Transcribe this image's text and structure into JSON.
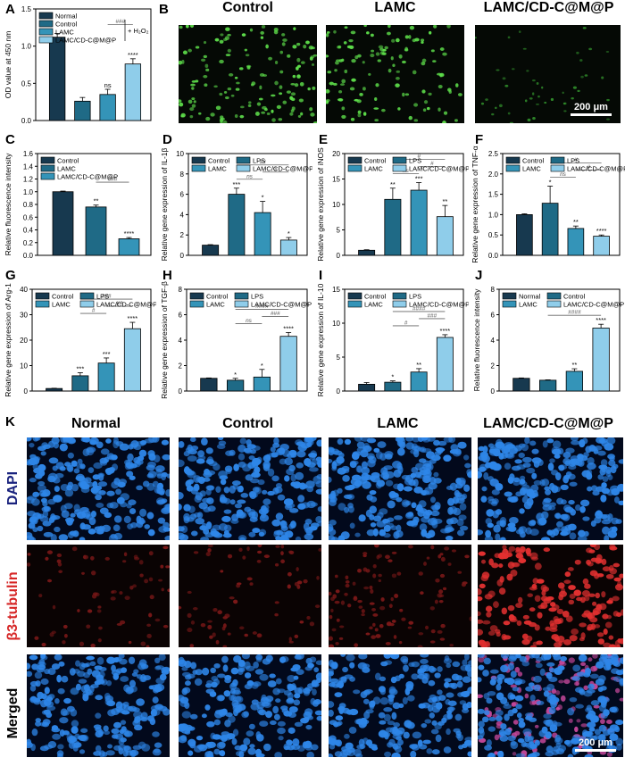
{
  "panel_letters": [
    "A",
    "B",
    "C",
    "D",
    "E",
    "F",
    "G",
    "H",
    "I",
    "J",
    "K"
  ],
  "colors": {
    "normal": "#17394f",
    "control": "#1f6a86",
    "lamc": "#3494b8",
    "combo": "#8fcdea",
    "green": "#5ddd4a",
    "dapi": "#2e86e8",
    "tub": "#d62525"
  },
  "panelB": {
    "titles": [
      "Control",
      "LAMC",
      "LAMC/CD-C@M@P"
    ],
    "scale_label": "200 μm"
  },
  "panelK": {
    "col_titles": [
      "Normal",
      "Control",
      "LAMC",
      "LAMC/CD-C@M@P"
    ],
    "row_labels": [
      "DAPI",
      "β3-tubulin",
      "Merged"
    ],
    "row_label_colors": [
      "#1a237e",
      "#d62525",
      "#000000"
    ],
    "scale_label": "200 μm"
  },
  "chart_data": [
    {
      "id": "A",
      "type": "bar",
      "ylabel": "OD value at 450 nm",
      "ylim": [
        0,
        1.5
      ],
      "yticks": [
        "0.0",
        "0.5",
        "1.0",
        "1.5"
      ],
      "ytick_values": [
        0,
        0.5,
        1.0,
        1.5
      ],
      "categories": [
        "Normal",
        "Control",
        "LAMC",
        "LAMC/CD-C@M@P"
      ],
      "values": [
        1.12,
        0.26,
        0.35,
        0.76
      ],
      "errors": [
        0.05,
        0.05,
        0.07,
        0.07
      ],
      "colors": [
        "#17394f",
        "#1f6a86",
        "#3494b8",
        "#8fcdea"
      ],
      "stars": [
        "",
        "",
        "ns",
        "****"
      ],
      "legend": [
        "Normal",
        "Control",
        "LAMC",
        "LAMC/CD-C@M@P"
      ],
      "legend_note": "+ H₂O₂",
      "brackets": [
        {
          "from": 2,
          "to": 3,
          "label": "###"
        }
      ]
    },
    {
      "id": "C",
      "type": "bar",
      "ylabel": "Relative fluorescence intensity",
      "ylim": [
        0,
        1.6
      ],
      "yticks": [
        "0.0",
        "0.2",
        "0.4",
        "0.6",
        "0.8",
        "1.0",
        "1.2",
        "1.4",
        "1.6"
      ],
      "ytick_values": [
        0,
        0.2,
        0.4,
        0.6,
        0.8,
        1.0,
        1.2,
        1.4,
        1.6
      ],
      "categories": [
        "Control",
        "LAMC",
        "LAMC/CD-C@M@P"
      ],
      "values": [
        1.0,
        0.76,
        0.26
      ],
      "errors": [
        0.01,
        0.03,
        0.02
      ],
      "colors": [
        "#17394f",
        "#1f6a86",
        "#3494b8"
      ],
      "stars": [
        "",
        "**",
        "****"
      ],
      "legend": [
        "Control",
        "LAMC",
        "LAMC/CD-C@M@P"
      ],
      "brackets": [
        {
          "from": 1,
          "to": 2,
          "label": "###"
        }
      ]
    },
    {
      "id": "D",
      "type": "bar",
      "ylabel": "Relative gene expression of IL-1β",
      "ylim": [
        0,
        10
      ],
      "yticks": [
        "0",
        "2",
        "4",
        "6",
        "8",
        "10"
      ],
      "ytick_values": [
        0,
        2,
        4,
        6,
        8,
        10
      ],
      "categories": [
        "Control",
        "LPS",
        "LAMC",
        "LAMC/CD-C@M@P"
      ],
      "values": [
        1.0,
        6.0,
        4.2,
        1.5
      ],
      "errors": [
        0.05,
        0.6,
        1.1,
        0.25
      ],
      "colors": [
        "#17394f",
        "#1f6a86",
        "#3494b8",
        "#8fcdea"
      ],
      "stars": [
        "",
        "***",
        "*",
        "*"
      ],
      "legend": [
        "Control",
        "LPS",
        "LAMC",
        "LAMC/CD-C@M@P"
      ],
      "brackets": [
        {
          "from": 1,
          "to": 2,
          "label": "ns"
        },
        {
          "from": 2,
          "to": 3,
          "label": "#"
        },
        {
          "from": 1,
          "to": 3,
          "label": "##"
        }
      ]
    },
    {
      "id": "E",
      "type": "bar",
      "ylabel": "Relative gene expression of iNOS",
      "ylim": [
        0,
        20
      ],
      "yticks": [
        "0",
        "5",
        "10",
        "15",
        "20"
      ],
      "ytick_values": [
        0,
        5,
        10,
        15,
        20
      ],
      "categories": [
        "Control",
        "LPS",
        "LAMC",
        "LAMC/CD-C@M@P"
      ],
      "values": [
        1.0,
        11.0,
        12.8,
        7.6
      ],
      "errors": [
        0.1,
        2.2,
        1.5,
        2.2
      ],
      "colors": [
        "#17394f",
        "#1f6a86",
        "#3494b8",
        "#8fcdea"
      ],
      "stars": [
        "",
        "**",
        "***",
        "**"
      ],
      "legend": [
        "Control",
        "LPS",
        "LAMC",
        "LAMC/CD-C@M@P"
      ],
      "brackets": [
        {
          "from": 1,
          "to": 2,
          "label": "ns"
        },
        {
          "from": 2,
          "to": 3,
          "label": "#"
        },
        {
          "from": 1,
          "to": 3,
          "label": "#"
        }
      ]
    },
    {
      "id": "F",
      "type": "bar",
      "ylabel": "Relative gene expression of TNF-α",
      "ylim": [
        0,
        2.5
      ],
      "yticks": [
        "0.0",
        "0.5",
        "1.0",
        "1.5",
        "2.0",
        "2.5"
      ],
      "ytick_values": [
        0,
        0.5,
        1.0,
        1.5,
        2.0,
        2.5
      ],
      "categories": [
        "Control",
        "LPS",
        "LAMC",
        "LAMC/CD-C@M@P"
      ],
      "values": [
        1.0,
        1.28,
        0.66,
        0.47
      ],
      "errors": [
        0.02,
        0.42,
        0.06,
        0.03
      ],
      "colors": [
        "#17394f",
        "#1f6a86",
        "#3494b8",
        "#8fcdea"
      ],
      "stars": [
        "",
        "*",
        "**",
        "****"
      ],
      "legend": [
        "Control",
        "LPS",
        "LAMC",
        "LAMC/CD-C@M@P"
      ],
      "brackets": [
        {
          "from": 1,
          "to": 2,
          "label": "ns"
        },
        {
          "from": 2,
          "to": 3,
          "label": "#"
        },
        {
          "from": 1,
          "to": 3,
          "label": "#"
        }
      ]
    },
    {
      "id": "G",
      "type": "bar",
      "ylabel": "Relative gene expression of Arg-1",
      "ylim": [
        0,
        40
      ],
      "yticks": [
        "0",
        "10",
        "20",
        "30",
        "40"
      ],
      "ytick_values": [
        0,
        10,
        20,
        30,
        40
      ],
      "categories": [
        "Control",
        "LPS",
        "LAMC",
        "LAMC/CD-C@M@P"
      ],
      "values": [
        1.0,
        6.0,
        11.0,
        24.5
      ],
      "errors": [
        0.1,
        1.2,
        2.0,
        2.5
      ],
      "colors": [
        "#17394f",
        "#1f6a86",
        "#3494b8",
        "#8fcdea"
      ],
      "stars": [
        "",
        "***",
        "***",
        "****"
      ],
      "legend": [
        "Control",
        "LPS",
        "LAMC",
        "LAMC/CD-C@M@P"
      ],
      "brackets": [
        {
          "from": 1,
          "to": 2,
          "label": "#"
        },
        {
          "from": 2,
          "to": 3,
          "label": "##"
        },
        {
          "from": 1,
          "to": 3,
          "label": "###"
        }
      ]
    },
    {
      "id": "H",
      "type": "bar",
      "ylabel": "Relative gene expression of TGF-β",
      "ylim": [
        0,
        8
      ],
      "yticks": [
        "0",
        "2",
        "4",
        "6",
        "8"
      ],
      "ytick_values": [
        0,
        2,
        4,
        6,
        8
      ],
      "categories": [
        "Control",
        "LPS",
        "LAMC",
        "LAMC/CD-C@M@P"
      ],
      "values": [
        1.0,
        0.85,
        1.1,
        4.3
      ],
      "errors": [
        0.03,
        0.15,
        0.6,
        0.3
      ],
      "colors": [
        "#17394f",
        "#1f6a86",
        "#3494b8",
        "#8fcdea"
      ],
      "stars": [
        "",
        "*",
        "*",
        "****"
      ],
      "legend": [
        "Control",
        "LPS",
        "LAMC",
        "LAMC/CD-C@M@P"
      ],
      "brackets": [
        {
          "from": 1,
          "to": 2,
          "label": "ns"
        },
        {
          "from": 2,
          "to": 3,
          "label": "###"
        },
        {
          "from": 1,
          "to": 3,
          "label": "####"
        }
      ]
    },
    {
      "id": "I",
      "type": "bar",
      "ylabel": "Relative gene expression of IL-10",
      "ylim": [
        0,
        15
      ],
      "yticks": [
        "0",
        "5",
        "10",
        "15"
      ],
      "ytick_values": [
        0,
        5,
        10,
        15
      ],
      "categories": [
        "Control",
        "LPS",
        "LAMC",
        "LAMC/CD-C@M@P"
      ],
      "values": [
        1.0,
        1.3,
        2.8,
        7.9
      ],
      "errors": [
        0.25,
        0.2,
        0.5,
        0.4
      ],
      "colors": [
        "#17394f",
        "#1f6a86",
        "#3494b8",
        "#8fcdea"
      ],
      "stars": [
        "",
        "*",
        "**",
        "****"
      ],
      "legend": [
        "Control",
        "LPS",
        "LAMC",
        "LAMC/CD-C@M@P"
      ],
      "brackets": [
        {
          "from": 1,
          "to": 2,
          "label": "#"
        },
        {
          "from": 2,
          "to": 3,
          "label": "###"
        },
        {
          "from": 1,
          "to": 3,
          "label": "####"
        }
      ]
    },
    {
      "id": "J",
      "type": "bar",
      "ylabel": "Relative fluorescence intensity",
      "ylim": [
        0,
        8
      ],
      "yticks": [
        "0",
        "2",
        "4",
        "6",
        "8"
      ],
      "ytick_values": [
        0,
        2,
        4,
        6,
        8
      ],
      "categories": [
        "Normal",
        "Control",
        "LAMC",
        "LAMC/CD-C@M@P"
      ],
      "values": [
        1.0,
        0.85,
        1.55,
        4.95
      ],
      "errors": [
        0.03,
        0.03,
        0.2,
        0.3
      ],
      "colors": [
        "#17394f",
        "#1f6a86",
        "#3494b8",
        "#8fcdea"
      ],
      "stars": [
        "",
        "",
        "**",
        "****"
      ],
      "legend": [
        "Normal",
        "Control",
        "LAMC",
        "LAMC/CD-C@M@P"
      ],
      "brackets": [
        {
          "from": 1,
          "to": 3,
          "label": "####"
        }
      ]
    }
  ]
}
